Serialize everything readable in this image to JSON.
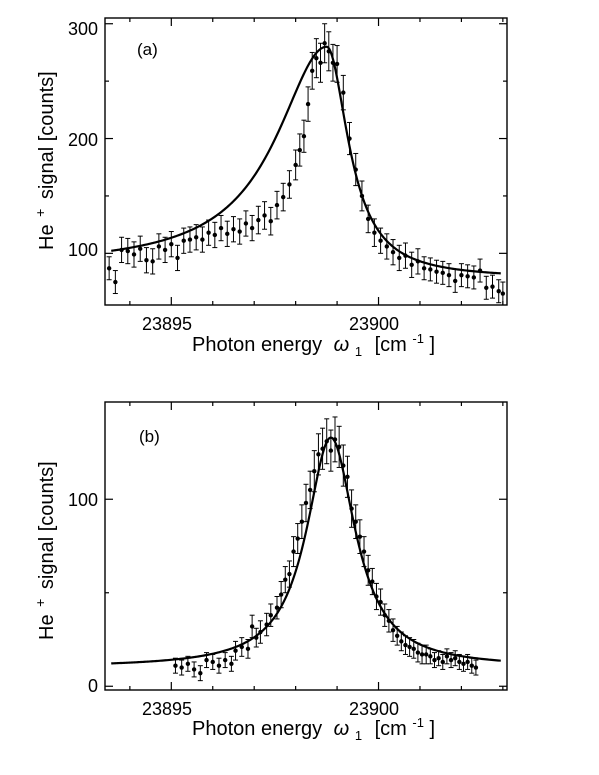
{
  "chart_data": [
    {
      "type": "scatter",
      "panel_label": "(a)",
      "xlabel": "Photon energy ω1 [cm-1]",
      "ylabel": "He + signal [counts]",
      "xlim": [
        23893.4,
        23903.1
      ],
      "ylim": [
        55,
        305
      ],
      "xticks_major": [
        23895,
        23900
      ],
      "xticks_minor": [
        23894,
        23896,
        23897,
        23898,
        23899,
        23901,
        23902,
        23903
      ],
      "yticks_major": [
        100,
        200,
        300
      ],
      "yticks_minor": [
        150,
        250
      ],
      "grid": false,
      "legend": "none",
      "fit_curve": {
        "model": "Fano/Lorentzian",
        "center": 23898.75,
        "peak": 280,
        "width": 1.05,
        "asymmetry": 0.6,
        "baseline_low": 85,
        "baseline_high": 78
      },
      "points": [
        [
          23893.5,
          87,
          10
        ],
        [
          23893.65,
          75,
          10
        ],
        [
          23893.8,
          103,
          11
        ],
        [
          23893.95,
          102,
          11
        ],
        [
          23894.1,
          99,
          11
        ],
        [
          23894.25,
          104,
          11
        ],
        [
          23894.4,
          94,
          11
        ],
        [
          23894.55,
          93,
          11
        ],
        [
          23894.7,
          106,
          11
        ],
        [
          23894.85,
          103,
          11
        ],
        [
          23895.0,
          108,
          11
        ],
        [
          23895.15,
          96,
          11
        ],
        [
          23895.3,
          111,
          11
        ],
        [
          23895.45,
          112,
          11
        ],
        [
          23895.6,
          114,
          11
        ],
        [
          23895.75,
          112,
          11
        ],
        [
          23895.9,
          118,
          11
        ],
        [
          23896.05,
          116,
          11
        ],
        [
          23896.2,
          122,
          11
        ],
        [
          23896.35,
          117,
          11
        ],
        [
          23896.5,
          121,
          11
        ],
        [
          23896.65,
          119,
          11
        ],
        [
          23896.8,
          126,
          11
        ],
        [
          23896.95,
          122,
          11
        ],
        [
          23897.1,
          129,
          12
        ],
        [
          23897.25,
          133,
          12
        ],
        [
          23897.4,
          128,
          12
        ],
        [
          23897.55,
          142,
          12
        ],
        [
          23897.7,
          149,
          12
        ],
        [
          23897.85,
          160,
          12
        ],
        [
          23898.0,
          177,
          13
        ],
        [
          23898.1,
          190,
          14
        ],
        [
          23898.2,
          202,
          14
        ],
        [
          23898.3,
          230,
          15
        ],
        [
          23898.4,
          259,
          16
        ],
        [
          23898.5,
          270,
          17
        ],
        [
          23898.6,
          266,
          17
        ],
        [
          23898.7,
          283,
          17
        ],
        [
          23898.8,
          276,
          17
        ],
        [
          23898.9,
          266,
          16
        ],
        [
          23899.0,
          265,
          16
        ],
        [
          23899.15,
          240,
          15
        ],
        [
          23899.3,
          200,
          14
        ],
        [
          23899.45,
          173,
          14
        ],
        [
          23899.6,
          150,
          13
        ],
        [
          23899.75,
          130,
          12
        ],
        [
          23899.9,
          118,
          12
        ],
        [
          23900.05,
          111,
          11
        ],
        [
          23900.2,
          106,
          11
        ],
        [
          23900.35,
          101,
          11
        ],
        [
          23900.5,
          96,
          11
        ],
        [
          23900.65,
          98,
          11
        ],
        [
          23900.8,
          90,
          11
        ],
        [
          23900.95,
          93,
          11
        ],
        [
          23901.1,
          87,
          10
        ],
        [
          23901.25,
          86,
          10
        ],
        [
          23901.4,
          84,
          10
        ],
        [
          23901.55,
          83,
          10
        ],
        [
          23901.7,
          81,
          10
        ],
        [
          23901.85,
          76,
          10
        ],
        [
          23902.0,
          81,
          10
        ],
        [
          23902.15,
          80,
          10
        ],
        [
          23902.3,
          79,
          10
        ],
        [
          23902.45,
          85,
          10
        ],
        [
          23902.6,
          70,
          10
        ],
        [
          23902.75,
          71,
          10
        ],
        [
          23902.9,
          67,
          10
        ],
        [
          23903.0,
          65,
          10
        ]
      ]
    },
    {
      "type": "scatter",
      "panel_label": "(b)",
      "xlabel": "Photon energy ω1 [cm-1]",
      "ylabel": "He + signal [counts]",
      "xlim": [
        23893.4,
        23903.1
      ],
      "ylim": [
        -2,
        152
      ],
      "xticks_major": [
        23895,
        23900
      ],
      "xticks_minor": [
        23894,
        23896,
        23897,
        23898,
        23899,
        23901,
        23902,
        23903
      ],
      "yticks_major": [
        0,
        100
      ],
      "yticks_minor": [
        50
      ],
      "grid": false,
      "legend": "none",
      "fit_curve": {
        "model": "Lorentzian",
        "center": 23898.85,
        "peak": 133,
        "width": 1.2,
        "baseline": 10
      },
      "points": [
        [
          23895.1,
          11,
          4
        ],
        [
          23895.25,
          10,
          4
        ],
        [
          23895.4,
          12,
          4
        ],
        [
          23895.55,
          9,
          4
        ],
        [
          23895.7,
          7,
          4
        ],
        [
          23895.85,
          14,
          4
        ],
        [
          23896.0,
          13,
          4
        ],
        [
          23896.15,
          11,
          4
        ],
        [
          23896.3,
          14,
          4
        ],
        [
          23896.45,
          12,
          4
        ],
        [
          23896.55,
          19,
          5
        ],
        [
          23896.7,
          21,
          5
        ],
        [
          23896.85,
          20,
          5
        ],
        [
          23896.95,
          32,
          6
        ],
        [
          23897.05,
          26,
          5
        ],
        [
          23897.15,
          29,
          6
        ],
        [
          23897.3,
          33,
          6
        ],
        [
          23897.4,
          38,
          6
        ],
        [
          23897.55,
          42,
          6
        ],
        [
          23897.65,
          49,
          7
        ],
        [
          23897.75,
          57,
          7
        ],
        [
          23897.85,
          60,
          7
        ],
        [
          23897.95,
          72,
          8
        ],
        [
          23898.05,
          79,
          8
        ],
        [
          23898.15,
          88,
          9
        ],
        [
          23898.25,
          98,
          10
        ],
        [
          23898.35,
          105,
          10
        ],
        [
          23898.45,
          115,
          11
        ],
        [
          23898.55,
          124,
          11
        ],
        [
          23898.65,
          127,
          11
        ],
        [
          23898.75,
          131,
          12
        ],
        [
          23898.85,
          126,
          11
        ],
        [
          23898.95,
          132,
          12
        ],
        [
          23899.05,
          128,
          11
        ],
        [
          23899.15,
          118,
          11
        ],
        [
          23899.25,
          112,
          11
        ],
        [
          23899.35,
          95,
          10
        ],
        [
          23899.45,
          88,
          9
        ],
        [
          23899.55,
          80,
          9
        ],
        [
          23899.65,
          72,
          8
        ],
        [
          23899.75,
          62,
          8
        ],
        [
          23899.85,
          56,
          7
        ],
        [
          23899.95,
          48,
          7
        ],
        [
          23900.05,
          45,
          7
        ],
        [
          23900.15,
          38,
          6
        ],
        [
          23900.25,
          35,
          6
        ],
        [
          23900.35,
          30,
          6
        ],
        [
          23900.45,
          27,
          5
        ],
        [
          23900.55,
          24,
          5
        ],
        [
          23900.65,
          22,
          5
        ],
        [
          23900.75,
          21,
          5
        ],
        [
          23900.85,
          20,
          5
        ],
        [
          23900.95,
          18,
          5
        ],
        [
          23901.05,
          17,
          5
        ],
        [
          23901.15,
          17,
          5
        ],
        [
          23901.25,
          16,
          4
        ],
        [
          23901.35,
          14,
          4
        ],
        [
          23901.45,
          15,
          4
        ],
        [
          23901.55,
          13,
          4
        ],
        [
          23901.65,
          16,
          4
        ],
        [
          23901.75,
          14,
          4
        ],
        [
          23901.85,
          15,
          4
        ],
        [
          23901.95,
          13,
          4
        ],
        [
          23902.05,
          12,
          4
        ],
        [
          23902.15,
          13,
          4
        ],
        [
          23902.25,
          11,
          4
        ],
        [
          23902.35,
          10,
          4
        ]
      ]
    }
  ],
  "text": {
    "panel_a_label": "(a)",
    "panel_b_label": "(b)",
    "ylabel_he": "He",
    "ylabel_plus": "+",
    "ylabel_rest": "signal [counts]",
    "xlabel_main": "Photon energy",
    "xlabel_omega": "ω",
    "xlabel_sub": "1",
    "xlabel_unit_open": "[cm",
    "xlabel_unit_exp": "-1",
    "xlabel_unit_close": "]",
    "a_y300": "300",
    "a_y200": "200",
    "a_y100": "100",
    "a_x23895": "23895",
    "a_x23900": "23900",
    "b_y100": "100",
    "b_y0": "0",
    "b_x23895": "23895",
    "b_x23900": "23900"
  },
  "colors": {
    "ink": "#000000",
    "background": "#ffffff"
  }
}
